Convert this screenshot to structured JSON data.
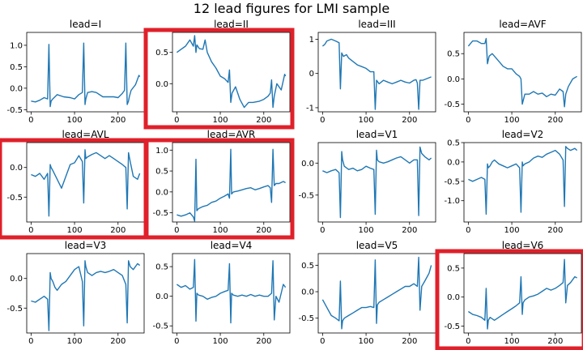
{
  "figure": {
    "title": "12 lead figures for LMI sample",
    "line_color": "#1f77b4",
    "highlight_color": "#e0202a",
    "highlighted_leads": [
      "II",
      "AVL",
      "AVR",
      "V6"
    ]
  },
  "chart_data": [
    {
      "type": "line",
      "title": "lead=I",
      "xlim": [
        -10,
        260
      ],
      "ylim": [
        -0.55,
        1.3
      ],
      "xticks": [
        "0",
        "100",
        "200"
      ],
      "yticks": [
        "-0.5",
        "0.0",
        "0.5",
        "1.0"
      ],
      "x": [
        0,
        10,
        20,
        30,
        38,
        41,
        44,
        46,
        50,
        60,
        75,
        90,
        100,
        110,
        118,
        121,
        124,
        126,
        130,
        140,
        150,
        165,
        180,
        190,
        200,
        210,
        215,
        218,
        221,
        224,
        226,
        230,
        240,
        248,
        250
      ],
      "y": [
        -0.3,
        -0.32,
        -0.28,
        -0.22,
        -0.25,
        1.02,
        -0.43,
        -0.3,
        -0.25,
        -0.15,
        -0.2,
        -0.22,
        -0.25,
        -0.15,
        -0.1,
        1.05,
        -0.38,
        -0.25,
        -0.1,
        -0.08,
        -0.1,
        -0.2,
        -0.2,
        -0.2,
        -0.22,
        -0.12,
        -0.05,
        1.05,
        -0.38,
        -0.3,
        -0.2,
        -0.05,
        0.08,
        0.3,
        0.27
      ]
    },
    {
      "type": "line",
      "title": "lead=II",
      "xlim": [
        -10,
        260
      ],
      "ylim": [
        -0.45,
        0.82
      ],
      "xticks": [
        "0",
        "100",
        "200"
      ],
      "yticks": [
        "0.0",
        "0.5"
      ],
      "x": [
        0,
        10,
        20,
        30,
        38,
        41,
        44,
        46,
        52,
        60,
        65,
        70,
        80,
        90,
        100,
        110,
        118,
        121,
        124,
        127,
        135,
        145,
        155,
        165,
        175,
        190,
        200,
        210,
        215,
        218,
        221,
        224,
        230,
        240,
        248,
        250
      ],
      "y": [
        0.5,
        0.55,
        0.6,
        0.7,
        0.6,
        0.77,
        0.5,
        0.62,
        0.56,
        0.55,
        0.7,
        0.5,
        0.35,
        0.25,
        0.12,
        0.08,
        0.02,
        0.22,
        -0.3,
        -0.15,
        -0.05,
        -0.25,
        -0.38,
        -0.3,
        -0.3,
        -0.28,
        -0.25,
        -0.2,
        -0.15,
        0.06,
        -0.38,
        -0.2,
        0.0,
        -0.1,
        0.15,
        0.12
      ]
    },
    {
      "type": "line",
      "title": "lead=III",
      "xlim": [
        -10,
        260
      ],
      "ylim": [
        -1.12,
        1.2
      ],
      "xticks": [
        "0",
        "100",
        "200"
      ],
      "yticks": [
        "-1",
        "0",
        "1"
      ],
      "x": [
        0,
        5,
        10,
        20,
        30,
        38,
        41,
        44,
        48,
        55,
        60,
        70,
        80,
        90,
        100,
        110,
        118,
        121,
        124,
        130,
        140,
        150,
        160,
        170,
        180,
        190,
        200,
        210,
        215,
        218,
        221,
        224,
        230,
        240,
        250
      ],
      "y": [
        0.8,
        0.85,
        0.95,
        1.0,
        0.95,
        0.9,
        -0.45,
        0.6,
        0.5,
        0.55,
        0.45,
        0.35,
        0.25,
        0.2,
        0.15,
        0.05,
        0.05,
        -1.05,
        -0.2,
        -0.3,
        -0.2,
        -0.25,
        -0.3,
        -0.25,
        -0.2,
        -0.25,
        -0.28,
        -0.2,
        -0.18,
        -0.28,
        -1.05,
        -0.2,
        -0.2,
        -0.15,
        -0.1
      ]
    },
    {
      "type": "line",
      "title": "lead=AVF",
      "xlim": [
        -10,
        260
      ],
      "ylim": [
        -0.65,
        0.92
      ],
      "xticks": [
        "0",
        "100",
        "200"
      ],
      "yticks": [
        "-0.5",
        "0.0",
        "0.5"
      ],
      "x": [
        0,
        5,
        10,
        20,
        30,
        38,
        41,
        44,
        48,
        55,
        60,
        70,
        80,
        90,
        100,
        110,
        118,
        121,
        124,
        130,
        140,
        150,
        160,
        170,
        180,
        190,
        200,
        210,
        218,
        221,
        224,
        230,
        240,
        250
      ],
      "y": [
        0.65,
        0.7,
        0.75,
        0.75,
        0.7,
        0.7,
        0.8,
        0.3,
        0.45,
        0.5,
        0.45,
        0.35,
        0.25,
        0.2,
        0.2,
        0.1,
        0.05,
        0.0,
        -0.5,
        -0.3,
        -0.3,
        -0.25,
        -0.3,
        -0.28,
        -0.35,
        -0.3,
        -0.32,
        -0.2,
        -0.25,
        -0.55,
        -0.3,
        -0.15,
        0.0,
        0.05
      ]
    },
    {
      "type": "line",
      "title": "lead=AVL",
      "xlim": [
        -10,
        260
      ],
      "ylim": [
        -0.92,
        0.42
      ],
      "xticks": [
        "0",
        "100",
        "200"
      ],
      "yticks": [
        "-0.5",
        "0.0"
      ],
      "x": [
        0,
        10,
        20,
        30,
        38,
        41,
        44,
        46,
        50,
        60,
        70,
        80,
        90,
        100,
        110,
        118,
        121,
        124,
        126,
        130,
        140,
        150,
        160,
        170,
        180,
        190,
        200,
        210,
        218,
        221,
        224,
        228,
        235,
        245,
        250
      ],
      "y": [
        -0.12,
        -0.15,
        -0.1,
        -0.2,
        -0.1,
        -0.82,
        0.05,
        0.0,
        -0.05,
        -0.2,
        -0.35,
        -0.15,
        0.05,
        0.08,
        0.2,
        0.1,
        -0.6,
        0.3,
        0.15,
        0.18,
        0.22,
        0.25,
        0.2,
        0.15,
        0.2,
        0.15,
        0.1,
        0.05,
        0.0,
        -0.7,
        0.25,
        0.1,
        -0.15,
        -0.2,
        -0.1
      ]
    },
    {
      "type": "line",
      "title": "lead=AVR",
      "xlim": [
        -10,
        260
      ],
      "ylim": [
        -0.72,
        1.18
      ],
      "xticks": [
        "0",
        "100",
        "200"
      ],
      "yticks": [
        "-0.5",
        "0.0",
        "0.5",
        "1.0"
      ],
      "x": [
        0,
        10,
        20,
        30,
        38,
        41,
        44,
        46,
        50,
        60,
        70,
        80,
        90,
        100,
        110,
        118,
        121,
        124,
        126,
        130,
        140,
        150,
        160,
        170,
        180,
        190,
        200,
        210,
        215,
        218,
        221,
        224,
        228,
        235,
        245,
        250
      ],
      "y": [
        -0.55,
        -0.58,
        -0.55,
        -0.5,
        -0.6,
        -0.7,
        0.78,
        -0.45,
        -0.4,
        -0.35,
        -0.32,
        -0.25,
        -0.22,
        -0.15,
        -0.1,
        -0.05,
        -0.15,
        1.02,
        -0.05,
        0.0,
        0.02,
        0.05,
        0.08,
        0.1,
        0.05,
        0.08,
        0.12,
        0.15,
        0.1,
        -0.25,
        1.02,
        0.15,
        0.2,
        0.2,
        0.25,
        0.22
      ]
    },
    {
      "type": "line",
      "title": "lead=V1",
      "xlim": [
        -10,
        260
      ],
      "ylim": [
        -0.92,
        0.32
      ],
      "xticks": [
        "0",
        "100",
        "200"
      ],
      "yticks": [
        "-0.5",
        "0.0"
      ],
      "x": [
        0,
        10,
        20,
        30,
        38,
        41,
        44,
        46,
        50,
        60,
        70,
        80,
        90,
        100,
        110,
        118,
        121,
        124,
        126,
        130,
        140,
        150,
        160,
        170,
        180,
        190,
        200,
        210,
        218,
        221,
        224,
        228,
        235,
        245,
        250
      ],
      "y": [
        -0.12,
        -0.15,
        -0.12,
        -0.1,
        -0.15,
        -0.85,
        0.18,
        0.05,
        -0.05,
        -0.1,
        -0.08,
        -0.12,
        -0.1,
        -0.05,
        -0.08,
        -0.1,
        -0.8,
        0.2,
        0.05,
        0.02,
        0.0,
        0.02,
        0.05,
        0.08,
        0.1,
        0.05,
        0.0,
        0.05,
        0.05,
        -0.82,
        0.25,
        0.15,
        0.1,
        0.05,
        0.08
      ]
    },
    {
      "type": "line",
      "title": "lead=V2",
      "xlim": [
        -10,
        260
      ],
      "ylim": [
        -1.55,
        0.5
      ],
      "xticks": [
        "0",
        "100",
        "200"
      ],
      "yticks": [
        "-1.0",
        "-0.5",
        "0.0",
        "0.5"
      ],
      "x": [
        0,
        10,
        20,
        30,
        38,
        41,
        44,
        46,
        50,
        55,
        60,
        70,
        80,
        90,
        100,
        110,
        118,
        121,
        124,
        126,
        130,
        140,
        150,
        160,
        170,
        180,
        190,
        200,
        210,
        218,
        221,
        224,
        228,
        235,
        245,
        250
      ],
      "y": [
        -0.45,
        -0.5,
        -0.45,
        -0.4,
        -0.45,
        -1.35,
        -0.05,
        -0.15,
        -0.1,
        0.0,
        0.05,
        -0.05,
        -0.1,
        -0.15,
        -0.1,
        -0.05,
        -0.15,
        -1.3,
        0.0,
        -0.1,
        -0.05,
        0.0,
        0.1,
        0.15,
        0.12,
        0.2,
        0.25,
        0.3,
        0.2,
        0.05,
        -1.15,
        0.4,
        0.35,
        0.3,
        0.35,
        0.3
      ]
    },
    {
      "type": "line",
      "title": "lead=V3",
      "xlim": [
        -10,
        260
      ],
      "ylim": [
        -0.92,
        0.42
      ],
      "xticks": [
        "0",
        "100",
        "200"
      ],
      "yticks": [
        "-0.5",
        "0.0"
      ],
      "x": [
        0,
        10,
        20,
        30,
        38,
        41,
        44,
        46,
        50,
        55,
        60,
        70,
        80,
        90,
        100,
        110,
        118,
        121,
        124,
        126,
        130,
        140,
        150,
        160,
        170,
        180,
        190,
        200,
        210,
        218,
        221,
        224,
        228,
        235,
        245,
        250
      ],
      "y": [
        -0.38,
        -0.4,
        -0.35,
        -0.3,
        -0.35,
        -0.88,
        0.1,
        0.0,
        -0.05,
        -0.15,
        -0.2,
        -0.1,
        -0.05,
        0.05,
        0.15,
        0.2,
        -0.05,
        -0.8,
        0.3,
        0.2,
        0.1,
        0.05,
        0.1,
        0.12,
        0.1,
        0.12,
        0.15,
        0.1,
        0.05,
        -0.1,
        -0.75,
        0.3,
        0.2,
        0.15,
        0.25,
        0.22
      ]
    },
    {
      "type": "line",
      "title": "lead=V4",
      "xlim": [
        -10,
        260
      ],
      "ylim": [
        -0.62,
        0.72
      ],
      "xticks": [
        "0",
        "100",
        "200"
      ],
      "yticks": [
        "-0.5",
        "0.0",
        "0.5"
      ],
      "x": [
        0,
        10,
        20,
        30,
        38,
        41,
        44,
        46,
        50,
        60,
        70,
        80,
        90,
        100,
        110,
        118,
        121,
        124,
        126,
        130,
        140,
        150,
        160,
        170,
        180,
        190,
        200,
        210,
        218,
        221,
        224,
        228,
        235,
        245,
        250
      ],
      "y": [
        0.2,
        0.15,
        0.18,
        0.12,
        0.15,
        0.62,
        -0.42,
        0.05,
        0.02,
        0.0,
        -0.05,
        -0.02,
        0.0,
        0.05,
        0.08,
        0.1,
        0.55,
        -0.45,
        0.05,
        0.02,
        0.0,
        0.02,
        0.0,
        0.03,
        0.0,
        0.02,
        0.0,
        0.0,
        0.05,
        0.6,
        -0.4,
        0.0,
        -0.1,
        0.2,
        0.15
      ]
    },
    {
      "type": "line",
      "title": "lead=V5",
      "xlim": [
        -10,
        260
      ],
      "ylim": [
        -0.78,
        0.72
      ],
      "xticks": [
        "0",
        "100",
        "200"
      ],
      "yticks": [
        "-0.5",
        "0.0",
        "0.5"
      ],
      "x": [
        0,
        10,
        20,
        30,
        38,
        41,
        44,
        46,
        50,
        60,
        70,
        80,
        90,
        100,
        110,
        118,
        121,
        124,
        126,
        130,
        140,
        150,
        160,
        170,
        180,
        190,
        200,
        210,
        218,
        221,
        224,
        228,
        235,
        245,
        250
      ],
      "y": [
        -0.15,
        -0.3,
        -0.45,
        -0.5,
        -0.55,
        0.2,
        -0.7,
        -0.55,
        -0.5,
        -0.45,
        -0.4,
        -0.35,
        -0.3,
        -0.3,
        -0.28,
        -0.3,
        0.6,
        -0.6,
        -0.25,
        -0.2,
        -0.15,
        -0.1,
        -0.05,
        0.0,
        0.05,
        0.1,
        0.1,
        0.15,
        0.1,
        0.65,
        -0.35,
        0.1,
        0.2,
        0.35,
        0.5
      ]
    },
    {
      "type": "line",
      "title": "lead=V6",
      "xlim": [
        -10,
        260
      ],
      "ylim": [
        -0.62,
        0.75
      ],
      "xticks": [
        "0",
        "100",
        "200"
      ],
      "yticks": [
        "-0.5",
        "0.0",
        "0.5"
      ],
      "x": [
        0,
        10,
        20,
        30,
        38,
        41,
        44,
        46,
        50,
        60,
        70,
        80,
        90,
        100,
        110,
        118,
        121,
        124,
        126,
        130,
        140,
        150,
        160,
        170,
        180,
        190,
        200,
        210,
        218,
        221,
        224,
        228,
        235,
        245,
        250
      ],
      "y": [
        -0.25,
        -0.3,
        -0.32,
        -0.35,
        -0.4,
        0.15,
        -0.55,
        -0.4,
        -0.35,
        -0.4,
        -0.35,
        -0.3,
        -0.25,
        -0.2,
        -0.15,
        -0.1,
        0.35,
        -0.3,
        -0.1,
        -0.05,
        0.0,
        0.02,
        0.05,
        0.1,
        0.15,
        0.12,
        0.15,
        0.2,
        0.25,
        0.65,
        -0.1,
        0.2,
        0.25,
        0.35,
        0.33
      ]
    }
  ]
}
